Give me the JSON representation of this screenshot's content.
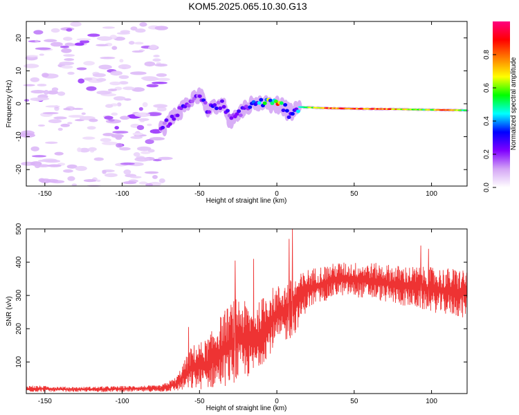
{
  "title": "KOM5.2025.065.10.30.G13",
  "chart_data": [
    {
      "type": "heatmap",
      "xlabel": "Height of straight line (km)",
      "ylabel": "Frequency (Hz)",
      "xlim": [
        -162,
        123
      ],
      "ylim": [
        -25,
        25
      ],
      "xticks": [
        -150,
        -100,
        -50,
        0,
        50,
        100
      ],
      "yticks": [
        -20,
        -10,
        0,
        10,
        20
      ],
      "colorbar": {
        "label": "Normalized spectral amplitude",
        "range": [
          0,
          1
        ],
        "ticks": [
          0.0,
          0.2,
          0.4,
          0.6,
          0.8
        ],
        "colors": [
          "#ffffff",
          "#d4a6f5",
          "#8000ff",
          "#0000ff",
          "#00ffff",
          "#00ff00",
          "#ffff00",
          "#ff8000",
          "#ff0000",
          "#ff0080"
        ]
      },
      "noise_region_x": [
        -162,
        -72
      ],
      "ridge": [
        {
          "x": -75,
          "y": -8,
          "amp": 0.25
        },
        {
          "x": -65,
          "y": -3,
          "amp": 0.3
        },
        {
          "x": -50,
          "y": 3,
          "amp": 0.3
        },
        {
          "x": -45,
          "y": -2,
          "amp": 0.28
        },
        {
          "x": -35,
          "y": 0,
          "amp": 0.3
        },
        {
          "x": -30,
          "y": -5,
          "amp": 0.25
        },
        {
          "x": -20,
          "y": -1,
          "amp": 0.3
        },
        {
          "x": -10,
          "y": 0.5,
          "amp": 0.45
        },
        {
          "x": 0,
          "y": 0,
          "amp": 0.85
        },
        {
          "x": 5,
          "y": -1,
          "amp": 0.5
        },
        {
          "x": 8,
          "y": -3,
          "amp": 0.3
        },
        {
          "x": 15,
          "y": -1,
          "amp": 0.5
        },
        {
          "x": 30,
          "y": -1.3,
          "amp": 0.85
        },
        {
          "x": 50,
          "y": -1.5,
          "amp": 0.9
        },
        {
          "x": 70,
          "y": -1.6,
          "amp": 0.9
        },
        {
          "x": 95,
          "y": -1.8,
          "amp": 0.6
        },
        {
          "x": 110,
          "y": -1.9,
          "amp": 0.9
        },
        {
          "x": 123,
          "y": -2,
          "amp": 0.5
        }
      ]
    },
    {
      "type": "line",
      "xlabel": "Height of straight line (km)",
      "ylabel": "SNR (v/v)",
      "xlim": [
        -162,
        123
      ],
      "ylim": [
        5,
        500
      ],
      "xticks": [
        -150,
        -100,
        -50,
        0,
        50,
        100
      ],
      "yticks": [
        100,
        200,
        300,
        400,
        500
      ],
      "series": [
        {
          "color": "#ee3333",
          "envelope": [
            {
              "x": -162,
              "low": 10,
              "high": 30
            },
            {
              "x": -130,
              "low": 10,
              "high": 25
            },
            {
              "x": -100,
              "low": 10,
              "high": 28
            },
            {
              "x": -75,
              "low": 10,
              "high": 30
            },
            {
              "x": -65,
              "low": 12,
              "high": 55
            },
            {
              "x": -55,
              "low": 15,
              "high": 150
            },
            {
              "x": -45,
              "low": 18,
              "high": 170
            },
            {
              "x": -35,
              "low": 25,
              "high": 250
            },
            {
              "x": -25,
              "low": 40,
              "high": 300
            },
            {
              "x": -15,
              "low": 60,
              "high": 260
            },
            {
              "x": -5,
              "low": 120,
              "high": 320
            },
            {
              "x": 0,
              "low": 150,
              "high": 330
            },
            {
              "x": 10,
              "low": 170,
              "high": 350
            },
            {
              "x": 20,
              "low": 260,
              "high": 380
            },
            {
              "x": 40,
              "low": 300,
              "high": 400
            },
            {
              "x": 60,
              "low": 290,
              "high": 400
            },
            {
              "x": 80,
              "low": 270,
              "high": 390
            },
            {
              "x": 100,
              "low": 250,
              "high": 385
            },
            {
              "x": 123,
              "low": 230,
              "high": 380
            }
          ],
          "spikes": [
            {
              "x": -57,
              "y": 205
            },
            {
              "x": -27,
              "y": 405
            },
            {
              "x": -15,
              "y": 410
            },
            {
              "x": 8,
              "y": 470
            },
            {
              "x": 10,
              "y": 500
            },
            {
              "x": 93,
              "y": 450
            },
            {
              "x": 98,
              "y": 440
            }
          ]
        }
      ]
    }
  ]
}
